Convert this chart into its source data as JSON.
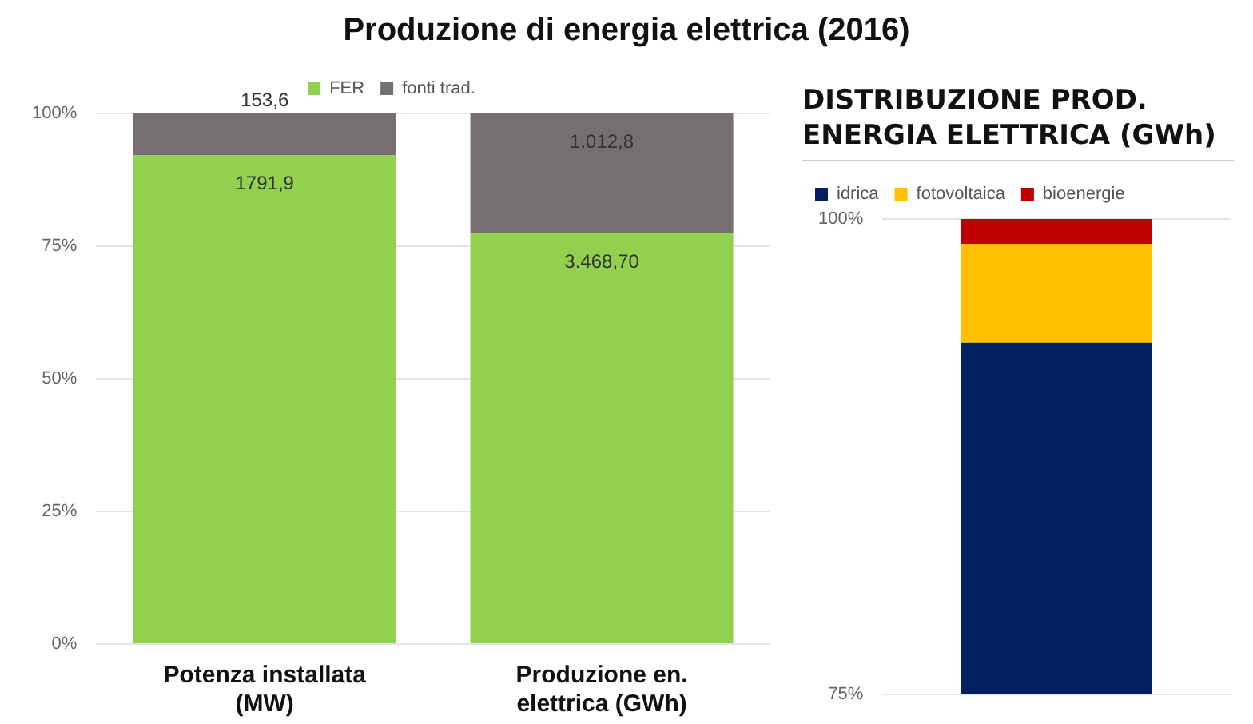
{
  "chart_data": [
    {
      "type": "bar",
      "title": "Produzione di energia elettrica (2016)",
      "categories": [
        "Potenza installata (MW)",
        "Produzione en. elettrica (GWh)"
      ],
      "stacked": true,
      "series": [
        {
          "name": "FER",
          "color": "#92d050",
          "values": [
            92.1,
            77.4
          ]
        },
        {
          "name": "fonti trad.",
          "color": "#757070",
          "values": [
            7.9,
            22.6
          ]
        }
      ],
      "annotations": [
        {
          "text": "1791,9",
          "x": "Potenza installata (MW)",
          "y": 92.1
        },
        {
          "text": "153,6",
          "x": "Potenza installata (MW)",
          "y": 100
        },
        {
          "text": "3.468,70",
          "x": "Produzione en. elettrica (GWh)",
          "y": 77.4
        },
        {
          "text": "1.012,8",
          "x": "Produzione en. elettrica (GWh)",
          "y": 100
        }
      ],
      "ylim": [
        0,
        100
      ],
      "yticks": [
        {
          "value": 0,
          "label": "0%"
        },
        {
          "value": 25,
          "label": "25%"
        },
        {
          "value": 50,
          "label": "50%"
        },
        {
          "value": 75,
          "label": "75%"
        },
        {
          "value": 100,
          "label": "100%"
        }
      ],
      "grid": "y",
      "legend": "top"
    },
    {
      "type": "bar",
      "title": "DISTRIBUZIONE PROD. ENERGIA ELETTRICA (GWh)",
      "categories": [
        null
      ],
      "series": [
        {
          "name": "idrica",
          "color": "#002060",
          "values": [
            93.5
          ],
          "base": [
            0
          ]
        },
        {
          "name": "fotovoltaica",
          "color": "#ffc000",
          "values": [
            5.2
          ],
          "base": [
            93.5
          ]
        },
        {
          "name": "bioenergie",
          "color": "#c00000",
          "values": [
            1.3
          ],
          "base": [
            98.7
          ]
        }
      ],
      "ylim": [
        75,
        100
      ],
      "yticks": [
        {
          "value": 75,
          "label": "75%"
        },
        {
          "value": 100,
          "label": "100%"
        }
      ],
      "grid": "y",
      "legend": "top left",
      "tick_labels": "y"
    }
  ]
}
